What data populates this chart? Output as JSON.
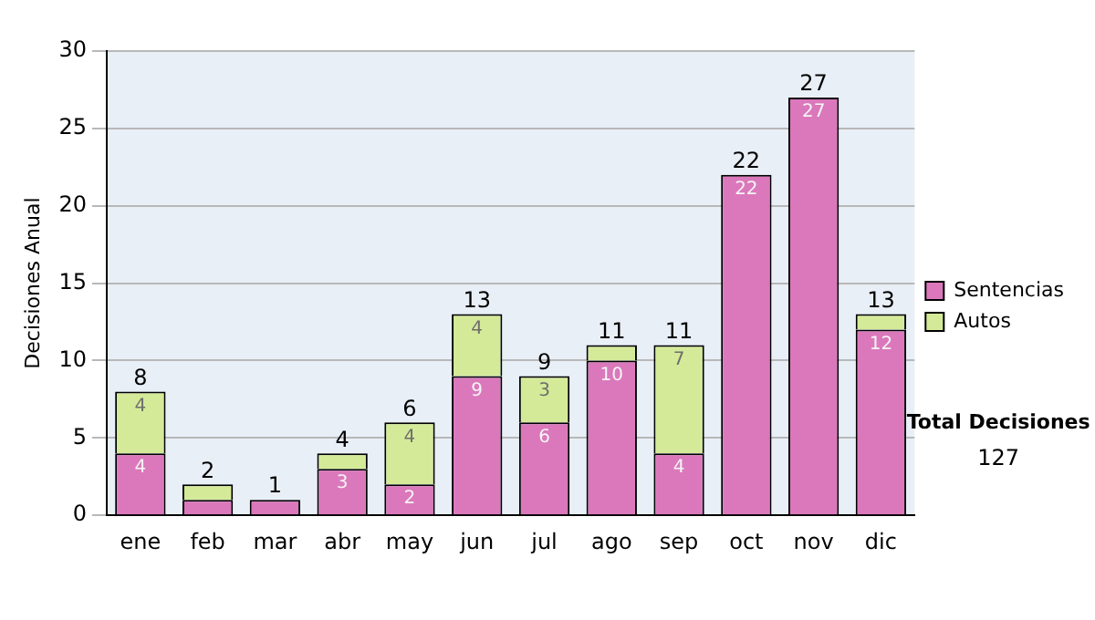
{
  "chart_data": {
    "type": "bar",
    "ylabel": "Decisiones Anual",
    "categories": [
      "ene",
      "feb",
      "mar",
      "abr",
      "may",
      "jun",
      "jul",
      "ago",
      "sep",
      "oct",
      "nov",
      "dic"
    ],
    "series": [
      {
        "name": "Sentencias",
        "color": "#db78bc",
        "values": [
          4,
          1,
          1,
          3,
          2,
          9,
          6,
          10,
          4,
          22,
          27,
          12
        ],
        "value_labels": [
          "4",
          null,
          null,
          "3",
          "2",
          "9",
          "6",
          "10",
          "4",
          "22",
          "27",
          "12"
        ]
      },
      {
        "name": "Autos",
        "color": "#d5ea98",
        "values": [
          4,
          1,
          0,
          1,
          4,
          4,
          3,
          1,
          7,
          0,
          0,
          1
        ],
        "value_labels": [
          "4",
          null,
          null,
          null,
          "4",
          "4",
          "3",
          null,
          "7",
          null,
          null,
          null
        ]
      }
    ],
    "stacked": true,
    "totals": [
      "8",
      "2",
      "1",
      "4",
      "6",
      "13",
      "9",
      "11",
      "11",
      "22",
      "27",
      "13"
    ],
    "ylim": [
      0,
      30
    ],
    "yticks": [
      0,
      5,
      10,
      15,
      20,
      25,
      30
    ],
    "grid": "y",
    "legend": "right",
    "annotations": [
      "Total Decisiones",
      "127"
    ]
  }
}
